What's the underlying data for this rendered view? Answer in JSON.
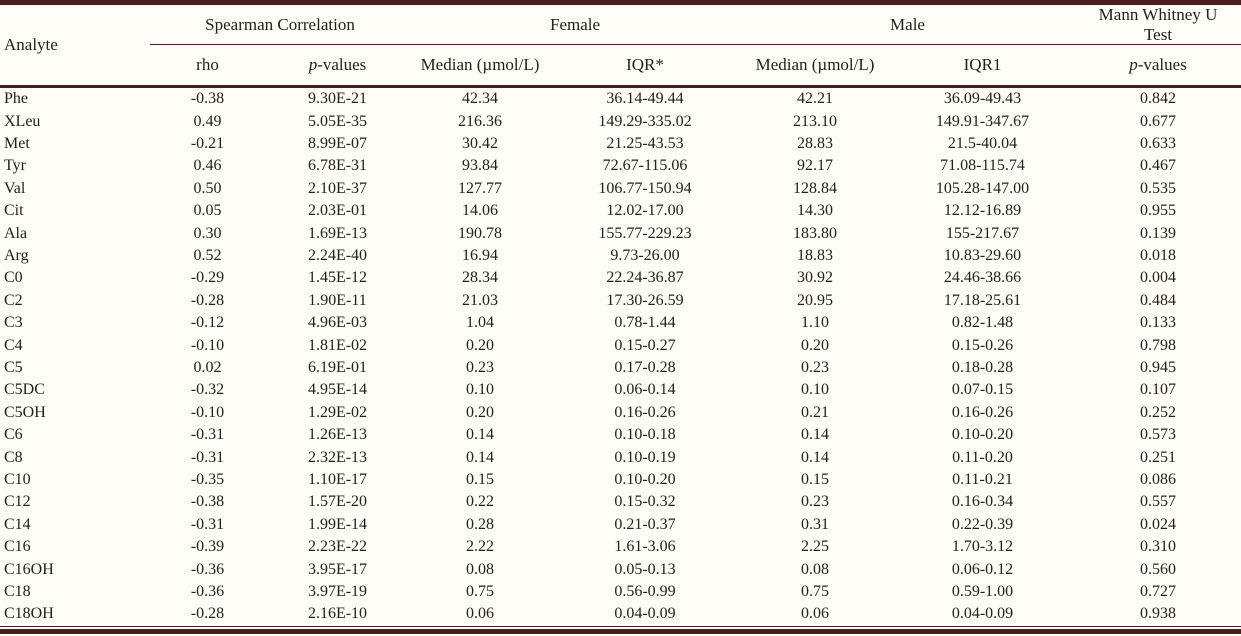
{
  "colors": {
    "rule": "#4a1e1f",
    "text": "#25201e",
    "background": "#fffdf8"
  },
  "header": {
    "analyte": "Analyte",
    "spearman_group": "Spearman Correlation",
    "female_group": "Female",
    "male_group": "Male",
    "mann_whitney_group": "Mann Whitney U Test",
    "rho": "rho",
    "p_italic": "p",
    "p_values_suffix": "-values",
    "median_label": "Median (µmol/L)",
    "iqr_female": "IQR*",
    "iqr_male": "IQR1"
  },
  "chart_data": {
    "type": "table",
    "column_groups": [
      {
        "label": "Analyte",
        "span": 1
      },
      {
        "label": "Spearman Correlation",
        "span": 2
      },
      {
        "label": "Female",
        "span": 2
      },
      {
        "label": "Male",
        "span": 2
      },
      {
        "label": "Mann Whitney U Test",
        "span": 1
      }
    ],
    "columns": [
      "Analyte",
      "rho",
      "p-values",
      "Median (µmol/L)",
      "IQR*",
      "Median (µmol/L)",
      "IQR1",
      "p-values"
    ],
    "rows": [
      [
        "Phe",
        "-0.38",
        "9.30E-21",
        "42.34",
        "36.14-49.44",
        "42.21",
        "36.09-49.43",
        "0.842"
      ],
      [
        "XLeu",
        "0.49",
        "5.05E-35",
        "216.36",
        "149.29-335.02",
        "213.10",
        "149.91-347.67",
        "0.677"
      ],
      [
        "Met",
        "-0.21",
        "8.99E-07",
        "30.42",
        "21.25-43.53",
        "28.83",
        "21.5-40.04",
        "0.633"
      ],
      [
        "Tyr",
        "0.46",
        "6.78E-31",
        "93.84",
        "72.67-115.06",
        "92.17",
        "71.08-115.74",
        "0.467"
      ],
      [
        "Val",
        "0.50",
        "2.10E-37",
        "127.77",
        "106.77-150.94",
        "128.84",
        "105.28-147.00",
        "0.535"
      ],
      [
        "Cit",
        "0.05",
        "2.03E-01",
        "14.06",
        "12.02-17.00",
        "14.30",
        "12.12-16.89",
        "0.955"
      ],
      [
        "Ala",
        "0.30",
        "1.69E-13",
        "190.78",
        "155.77-229.23",
        "183.80",
        "155-217.67",
        "0.139"
      ],
      [
        "Arg",
        "0.52",
        "2.24E-40",
        "16.94",
        "9.73-26.00",
        "18.83",
        "10.83-29.60",
        "0.018"
      ],
      [
        "C0",
        "-0.29",
        "1.45E-12",
        "28.34",
        "22.24-36.87",
        "30.92",
        "24.46-38.66",
        "0.004"
      ],
      [
        "C2",
        "-0.28",
        "1.90E-11",
        "21.03",
        "17.30-26.59",
        "20.95",
        "17.18-25.61",
        "0.484"
      ],
      [
        "C3",
        "-0.12",
        "4.96E-03",
        "1.04",
        "0.78-1.44",
        "1.10",
        "0.82-1.48",
        "0.133"
      ],
      [
        "C4",
        "-0.10",
        "1.81E-02",
        "0.20",
        "0.15-0.27",
        "0.20",
        "0.15-0.26",
        "0.798"
      ],
      [
        "C5",
        "0.02",
        "6.19E-01",
        "0.23",
        "0.17-0.28",
        "0.23",
        "0.18-0.28",
        "0.945"
      ],
      [
        "C5DC",
        "-0.32",
        "4.95E-14",
        "0.10",
        "0.06-0.14",
        "0.10",
        "0.07-0.15",
        "0.107"
      ],
      [
        "C5OH",
        "-0.10",
        "1.29E-02",
        "0.20",
        "0.16-0.26",
        "0.21",
        "0.16-0.26",
        "0.252"
      ],
      [
        "C6",
        "-0.31",
        "1.26E-13",
        "0.14",
        "0.10-0.18",
        "0.14",
        "0.10-0.20",
        "0.573"
      ],
      [
        "C8",
        "-0.31",
        "2.32E-13",
        "0.14",
        "0.10-0.19",
        "0.14",
        "0.11-0.20",
        "0.251"
      ],
      [
        "C10",
        "-0.35",
        "1.10E-17",
        "0.15",
        "0.10-0.20",
        "0.15",
        "0.11-0.21",
        "0.086"
      ],
      [
        "C12",
        "-0.38",
        "1.57E-20",
        "0.22",
        "0.15-0.32",
        "0.23",
        "0.16-0.34",
        "0.557"
      ],
      [
        "C14",
        "-0.31",
        "1.99E-14",
        "0.28",
        "0.21-0.37",
        "0.31",
        "0.22-0.39",
        "0.024"
      ],
      [
        "C16",
        "-0.39",
        "2.23E-22",
        "2.22",
        "1.61-3.06",
        "2.25",
        "1.70-3.12",
        "0.310"
      ],
      [
        "C16OH",
        "-0.36",
        "3.95E-17",
        "0.08",
        "0.05-0.13",
        "0.08",
        "0.06-0.12",
        "0.560"
      ],
      [
        "C18",
        "-0.36",
        "3.97E-19",
        "0.75",
        "0.56-0.99",
        "0.75",
        "0.59-1.00",
        "0.727"
      ],
      [
        "C18OH",
        "-0.28",
        "2.16E-10",
        "0.06",
        "0.04-0.09",
        "0.06",
        "0.04-0.09",
        "0.938"
      ]
    ]
  }
}
